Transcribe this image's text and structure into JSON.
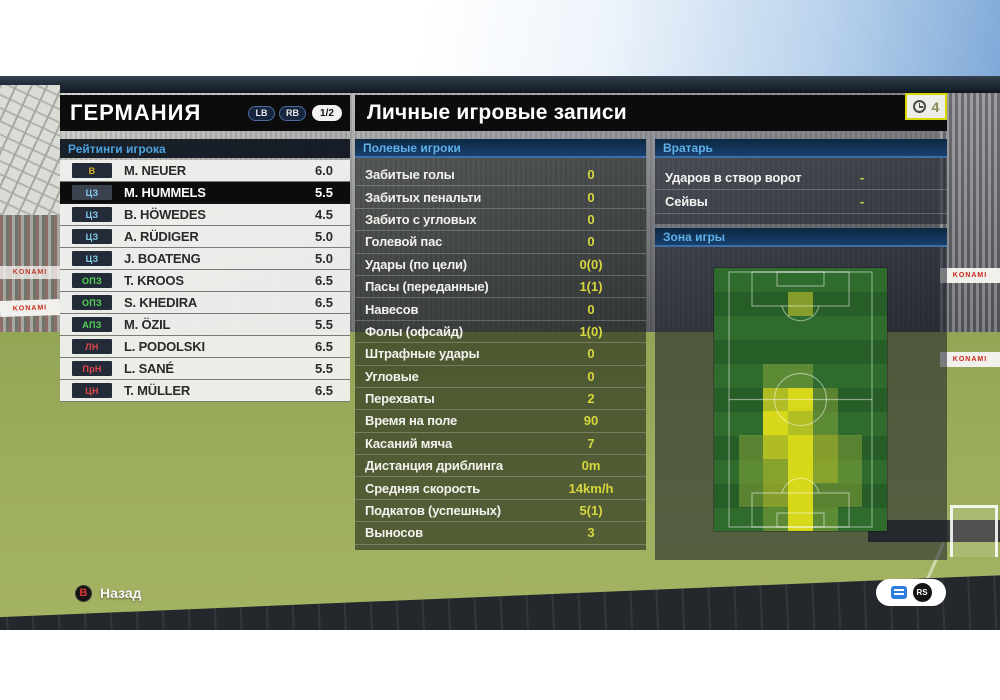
{
  "team_panel": {
    "title": "ГЕРМАНИЯ",
    "lb_label": "LB",
    "rb_label": "RB",
    "page_indicator": "1/2",
    "section_title": "Рейтинги игрока",
    "players": [
      {
        "pos": "В",
        "pos_color": "#d8b428",
        "name": "M. NEUER",
        "rating": "6.0",
        "selected": false
      },
      {
        "pos": "ЦЗ",
        "pos_color": "#85cbec",
        "name": "M. HUMMELS",
        "rating": "5.5",
        "selected": true
      },
      {
        "pos": "ЦЗ",
        "pos_color": "#85cbec",
        "name": "B. HÖWEDES",
        "rating": "4.5",
        "selected": false
      },
      {
        "pos": "ЦЗ",
        "pos_color": "#85cbec",
        "name": "A. RÜDIGER",
        "rating": "5.0",
        "selected": false
      },
      {
        "pos": "ЦЗ",
        "pos_color": "#85cbec",
        "name": "J. BOATENG",
        "rating": "5.0",
        "selected": false
      },
      {
        "pos": "ОПЗ",
        "pos_color": "#55d455",
        "name": "T. KROOS",
        "rating": "6.5",
        "selected": false
      },
      {
        "pos": "ОПЗ",
        "pos_color": "#55d455",
        "name": "S. KHEDIRA",
        "rating": "6.5",
        "selected": false
      },
      {
        "pos": "АПЗ",
        "pos_color": "#55d455",
        "name": "M. ÖZIL",
        "rating": "5.5",
        "selected": false
      },
      {
        "pos": "ЛН",
        "pos_color": "#e04848",
        "name": "L. PODOLSKI",
        "rating": "6.5",
        "selected": false
      },
      {
        "pos": "ПрН",
        "pos_color": "#e04848",
        "name": "L. SANÉ",
        "rating": "5.5",
        "selected": false
      },
      {
        "pos": "ЦН",
        "pos_color": "#e04848",
        "name": "T. MÜLLER",
        "rating": "6.5",
        "selected": false
      }
    ]
  },
  "records_panel": {
    "title": "Личные игровые записи",
    "clock_badge": {
      "icon": "clock-icon",
      "value": "4"
    },
    "field_section": {
      "title": "Полевые игроки",
      "rows": [
        {
          "label": "Забитые голы",
          "value": "0"
        },
        {
          "label": "Забитых пенальти",
          "value": "0"
        },
        {
          "label": "Забито с угловых",
          "value": "0"
        },
        {
          "label": "Голевой пас",
          "value": "0"
        },
        {
          "label": "Удары (по цели)",
          "value": "0(0)"
        },
        {
          "label": "Пасы (переданные)",
          "value": "1(1)"
        },
        {
          "label": "Навесов",
          "value": "0"
        },
        {
          "label": "Фолы (офсайд)",
          "value": "1(0)"
        },
        {
          "label": "Штрафные удары",
          "value": "0"
        },
        {
          "label": "Угловые",
          "value": "0"
        },
        {
          "label": "Перехваты",
          "value": "2"
        },
        {
          "label": "Время на поле",
          "value": "90"
        },
        {
          "label": "Касаний мяча",
          "value": "7"
        },
        {
          "label": "Дистанция дриблинга",
          "value": "0m"
        },
        {
          "label": "Средняя скорость",
          "value": "14km/h"
        },
        {
          "label": "Подкатов (успешных)",
          "value": "5(1)"
        },
        {
          "label": "Выносов",
          "value": "3"
        }
      ]
    },
    "gk_section": {
      "title": "Вратарь",
      "rows": [
        {
          "label": "Ударов в створ ворот",
          "value": "-"
        },
        {
          "label": "Сейвы",
          "value": "-"
        }
      ]
    },
    "zone_section": {
      "title": "Зона игры"
    }
  },
  "chart_data": {
    "type": "heatmap",
    "title": "Зона игры",
    "description": "Player activity zones on vertical pitch, own goal at bottom; intensity 0 (none) to 4 (most time)",
    "rows": 11,
    "cols": 7,
    "grid": [
      [
        0,
        0,
        0,
        0,
        0,
        0,
        0
      ],
      [
        0,
        0,
        0,
        2,
        0,
        0,
        0
      ],
      [
        0,
        0,
        0,
        0,
        0,
        0,
        0
      ],
      [
        0,
        0,
        0,
        0,
        0,
        0,
        0
      ],
      [
        0,
        0,
        1,
        1,
        0,
        0,
        0
      ],
      [
        0,
        0,
        3,
        4,
        1,
        0,
        0
      ],
      [
        0,
        0,
        4,
        3,
        1,
        0,
        0
      ],
      [
        0,
        1,
        3,
        4,
        2,
        1,
        0
      ],
      [
        0,
        1,
        2,
        4,
        2,
        1,
        0
      ],
      [
        0,
        1,
        2,
        4,
        1,
        1,
        0
      ],
      [
        0,
        0,
        1,
        4,
        1,
        0,
        0
      ]
    ],
    "palette": {
      "1": "rgba(140,170,60,0.50)",
      "2": "rgba(165,180,45,0.75)",
      "3": "rgba(200,205,35,0.85)",
      "4": "rgba(226,222,25,0.95)"
    }
  },
  "footer": {
    "back_button": "B",
    "back_label": "Назад",
    "rs_label": "RS"
  },
  "colors": {
    "value_yellow": "#d6d63e",
    "section_blue": "#5fb0e8",
    "clock_border": "#d6d600"
  },
  "background": {
    "banner_text": "KONAMI"
  }
}
